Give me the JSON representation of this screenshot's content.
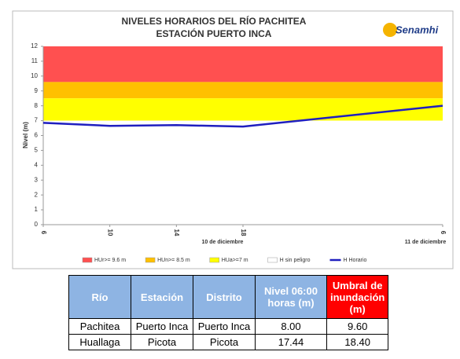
{
  "chart_data": {
    "type": "line",
    "title": "NIVELES HORARIOS DEL RÍO PACHITEA",
    "subtitle": "ESTACIÓN PUERTO INCA",
    "logo": "Senamhi",
    "y_label": "Nivel (m)",
    "ylim": [
      0,
      12
    ],
    "yticks": [
      0,
      1,
      2,
      3,
      4,
      5,
      6,
      7,
      8,
      9,
      10,
      11,
      12
    ],
    "xlim": [
      6,
      30
    ],
    "xticks": [
      6,
      10,
      14,
      18,
      {
        "value": 30,
        "label": "6"
      }
    ],
    "x_group_labels": [
      "10 de diciembre",
      "11 de diciembre"
    ],
    "bands": [
      {
        "name": "HUr>= 9.6 m",
        "color": "#ff5050",
        "range": [
          9.6,
          12
        ]
      },
      {
        "name": "HUn>= 8.5 m",
        "color": "#ffc000",
        "range": [
          8.5,
          9.6
        ]
      },
      {
        "name": "HUa>=7 m",
        "color": "#ffff00",
        "range": [
          7,
          8.5
        ]
      },
      {
        "name": "H sin peligro",
        "color": "#ffffff",
        "range": [
          0,
          7
        ]
      }
    ],
    "series": [
      {
        "name": "H Horario",
        "color": "#1f1fbf",
        "x": [
          6,
          10,
          14,
          18,
          30
        ],
        "values": [
          6.85,
          6.65,
          6.7,
          6.6,
          8.0
        ]
      }
    ]
  },
  "table": {
    "header": [
      "Río",
      "Estación",
      "Distrito",
      "Nivel 06:00 horas (m)",
      "Umbral de inundación (m)"
    ],
    "rows": [
      [
        "Pachitea",
        "Puerto Inca",
        "Puerto Inca",
        "8.00",
        "9.60"
      ],
      [
        "Huallaga",
        "Picota",
        "Picota",
        "17.44",
        "18.40"
      ]
    ]
  }
}
